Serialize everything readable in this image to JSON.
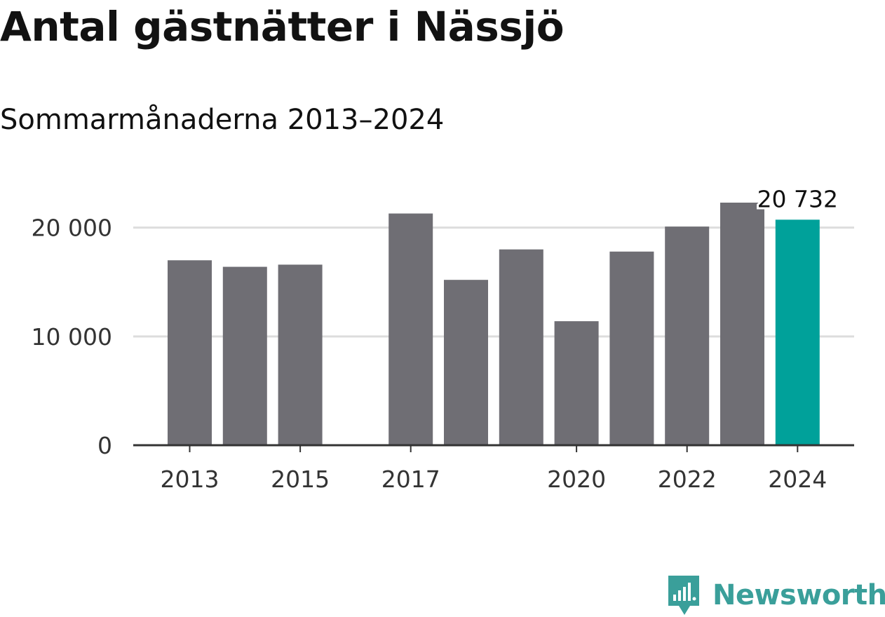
{
  "title": "Antal gästnätter i Nässjö",
  "subtitle": "Sommarmånaderna 2013–2024",
  "brand": {
    "name": "Newsworthy",
    "color": "#3a9f9a",
    "icon": "newsworthy-logo-icon"
  },
  "colors": {
    "bar": "#6f6e74",
    "highlight": "#00a19a",
    "grid": "#dddddd",
    "axis": "#333333"
  },
  "chart_data": {
    "type": "bar",
    "categories": [
      "2013",
      "2014",
      "2015",
      "2016",
      "2017",
      "2018",
      "2019",
      "2020",
      "2021",
      "2022",
      "2023",
      "2024"
    ],
    "values": [
      17000,
      16400,
      16600,
      null,
      21300,
      15200,
      18000,
      11400,
      17800,
      20100,
      22300,
      20732
    ],
    "highlight_category": "2024",
    "data_labels": [
      {
        "category": "2024",
        "text": "20 732"
      }
    ],
    "x_tick_labels": [
      "2013",
      "2015",
      "2017",
      "2020",
      "2022",
      "2024"
    ],
    "y_ticks": [
      {
        "value": 0,
        "label": "0"
      },
      {
        "value": 10000,
        "label": "10 000"
      },
      {
        "value": 20000,
        "label": "20 000"
      }
    ],
    "ylim": [
      0,
      22300
    ],
    "grid": true,
    "legend": "none",
    "xlabel": "",
    "ylabel": ""
  }
}
